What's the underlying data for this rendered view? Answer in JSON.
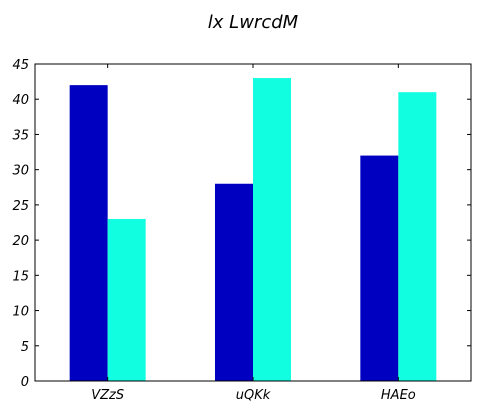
{
  "chart_data": {
    "type": "bar",
    "title": "lx LwrcdM",
    "xlabel": "",
    "ylabel": "",
    "categories": [
      "VZzS",
      "uQKk",
      "HAEo"
    ],
    "series": [
      {
        "values": [
          42,
          28,
          32
        ],
        "color": "#0000c0"
      },
      {
        "values": [
          23,
          43,
          41
        ],
        "color": "#11ffe0"
      }
    ],
    "ylim": [
      0,
      45
    ],
    "yticks": [
      0,
      5,
      10,
      15,
      20,
      25,
      30,
      35,
      40,
      45
    ],
    "grid": false,
    "legend": "none"
  }
}
